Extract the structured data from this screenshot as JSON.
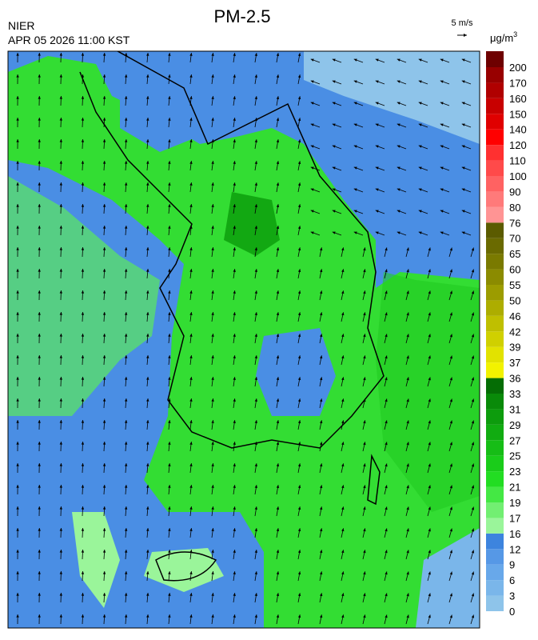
{
  "header": {
    "title": "PM-2.5",
    "agency": "NIER",
    "datetime": "APR 05 2026 11:00 KST",
    "wind_scale": "5 m/s"
  },
  "colorbar": {
    "unit": "μg/m",
    "unit_exponent": "3",
    "levels": [
      0,
      3,
      6,
      9,
      12,
      16,
      17,
      19,
      21,
      23,
      25,
      27,
      29,
      31,
      33,
      36,
      37,
      39,
      42,
      46,
      50,
      55,
      60,
      65,
      70,
      76,
      80,
      90,
      100,
      110,
      120,
      140,
      150,
      160,
      170,
      200
    ],
    "colors": [
      "#8ec4ea",
      "#7ab6ea",
      "#68a8ea",
      "#5698e6",
      "#3d84de",
      "#9af59a",
      "#72ef72",
      "#44e844",
      "#22dd22",
      "#1acc1a",
      "#16bd16",
      "#11ac11",
      "#0d9c0d",
      "#098a09",
      "#056d05",
      "#f2f200",
      "#e2e200",
      "#d0d000",
      "#bfbf00",
      "#adad00",
      "#9c9c00",
      "#8b8b00",
      "#7a7a00",
      "#6a6a00",
      "#5b5b00",
      "#ff9494",
      "#ff7a7a",
      "#ff6262",
      "#ff4a4a",
      "#ff3030",
      "#ff0000",
      "#e00000",
      "#c80000",
      "#b00000",
      "#980000",
      "#6e0000"
    ]
  }
}
